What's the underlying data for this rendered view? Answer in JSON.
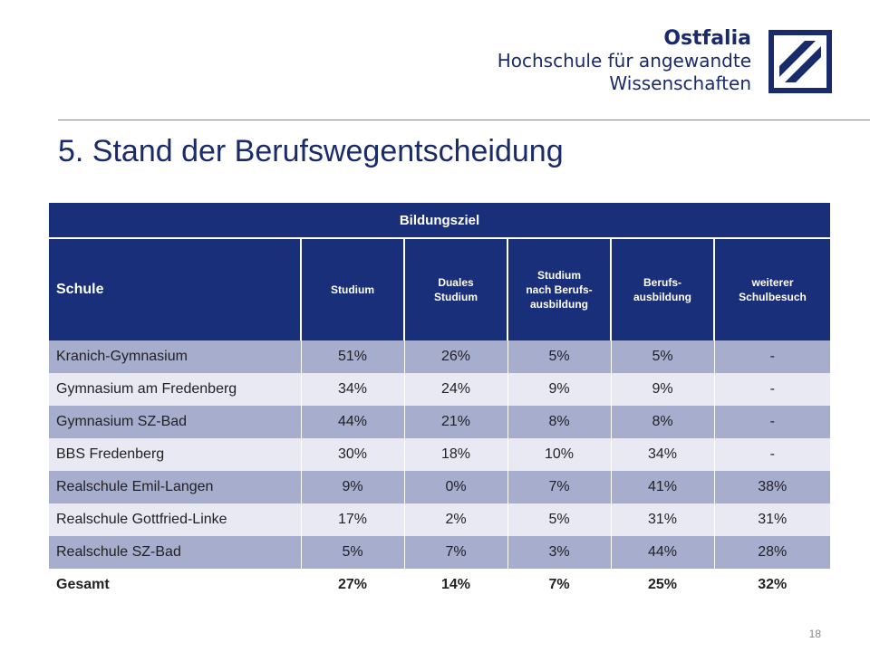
{
  "logo": {
    "brand": "Ostfalia",
    "line1": "Hochschule für angewandte",
    "line2": "Wissenschaften",
    "colors": {
      "primary": "#1a2b6b"
    }
  },
  "slide": {
    "title": "5. Stand der Berufswegentscheidung",
    "page_number": "18"
  },
  "table": {
    "group_header": "Bildungsziel",
    "school_header": "Schule",
    "columns": [
      "Studium",
      "Duales\nStudium",
      "Studium\nnach Berufs-\nausbildung",
      "Berufs-\nausbildung",
      "weiterer\nSchulbesuch"
    ],
    "rows": [
      {
        "school": "Kranich-Gymnasium",
        "values": [
          "51%",
          "26%",
          "5%",
          "5%",
          "-"
        ]
      },
      {
        "school": "Gymnasium am Fredenberg",
        "values": [
          "34%",
          "24%",
          "9%",
          "9%",
          "-"
        ]
      },
      {
        "school": "Gymnasium SZ-Bad",
        "values": [
          "44%",
          "21%",
          "8%",
          "8%",
          "-"
        ]
      },
      {
        "school": "BBS Fredenberg",
        "values": [
          "30%",
          "18%",
          "10%",
          "34%",
          "-"
        ]
      },
      {
        "school": "Realschule Emil-Langen",
        "values": [
          "9%",
          "0%",
          "7%",
          "41%",
          "38%"
        ]
      },
      {
        "school": "Realschule Gottfried-Linke",
        "values": [
          "17%",
          "2%",
          "5%",
          "31%",
          "31%"
        ]
      },
      {
        "school": "Realschule SZ-Bad",
        "values": [
          "5%",
          "7%",
          "3%",
          "44%",
          "28%"
        ]
      }
    ],
    "total": {
      "school": "Gesamt",
      "values": [
        "27%",
        "14%",
        "7%",
        "25%",
        "32%"
      ]
    },
    "colors": {
      "header": "#1a2f7a",
      "row_dark": "#a6adcd",
      "row_light": "#e9e9f3"
    }
  }
}
